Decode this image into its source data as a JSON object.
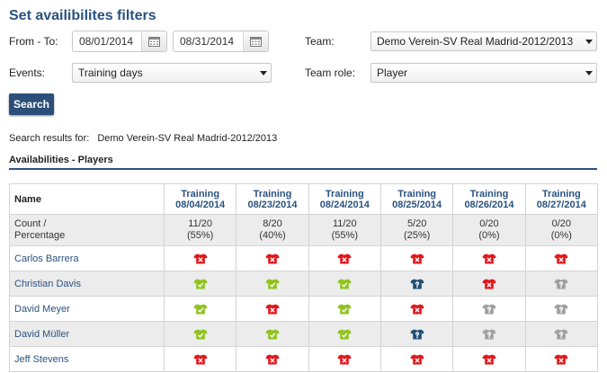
{
  "header": {
    "title": "Set availibilites filters"
  },
  "filters": {
    "from_to_label": "From - To:",
    "date_from": "08/01/2014",
    "date_to": "08/31/2014",
    "events_label": "Events:",
    "events_value": "Training days",
    "team_label": "Team:",
    "team_value": "Demo Verein-SV Real Madrid-2012/2013",
    "team_role_label": "Team role:",
    "team_role_value": "Player",
    "search_label": "Search"
  },
  "results": {
    "prefix": "Search results for:",
    "team": "Demo Verein-SV Real Madrid-2012/2013",
    "section_title": "Availabilities - Players"
  },
  "table": {
    "name_header": "Name",
    "count_label_1": "Count /",
    "count_label_2": "Percentage",
    "columns": [
      {
        "title": "Training",
        "date": "08/04/2014",
        "count": "11/20",
        "pct": "(55%)"
      },
      {
        "title": "Training",
        "date": "08/23/2014",
        "count": "8/20",
        "pct": "(40%)"
      },
      {
        "title": "Training",
        "date": "08/24/2014",
        "count": "11/20",
        "pct": "(55%)"
      },
      {
        "title": "Training",
        "date": "08/25/2014",
        "count": "5/20",
        "pct": "(25%)"
      },
      {
        "title": "Training",
        "date": "08/26/2014",
        "count": "0/20",
        "pct": "(0%)"
      },
      {
        "title": "Training",
        "date": "08/27/2014",
        "count": "0/20",
        "pct": "(0%)"
      }
    ],
    "players": [
      {
        "name": "Carlos Barrera",
        "status": [
          "no",
          "no",
          "no",
          "no",
          "no",
          "no"
        ]
      },
      {
        "name": "Christian Davis",
        "status": [
          "yes",
          "yes",
          "yes",
          "maybe",
          "no",
          "unknown"
        ]
      },
      {
        "name": "David Meyer",
        "status": [
          "yes",
          "no",
          "yes",
          "no",
          "unknown",
          "unknown"
        ]
      },
      {
        "name": "David Müller",
        "status": [
          "yes",
          "yes",
          "yes",
          "maybe",
          "unknown",
          "unknown"
        ]
      },
      {
        "name": "Jeff Stevens",
        "status": [
          "no",
          "no",
          "no",
          "no",
          "no",
          "no"
        ]
      }
    ]
  },
  "status_icons": {
    "no": {
      "icon": "shirt-x-icon",
      "color": "#e0171b"
    },
    "yes": {
      "icon": "shirt-check-icon",
      "color": "#8fc31f"
    },
    "maybe": {
      "icon": "shirt-question-icon",
      "color": "#1f4f78"
    },
    "unknown": {
      "icon": "shirt-question-icon",
      "color": "#a0a0a0"
    }
  },
  "colors": {
    "accent": "#2a5280",
    "button": "#2b4f78"
  }
}
